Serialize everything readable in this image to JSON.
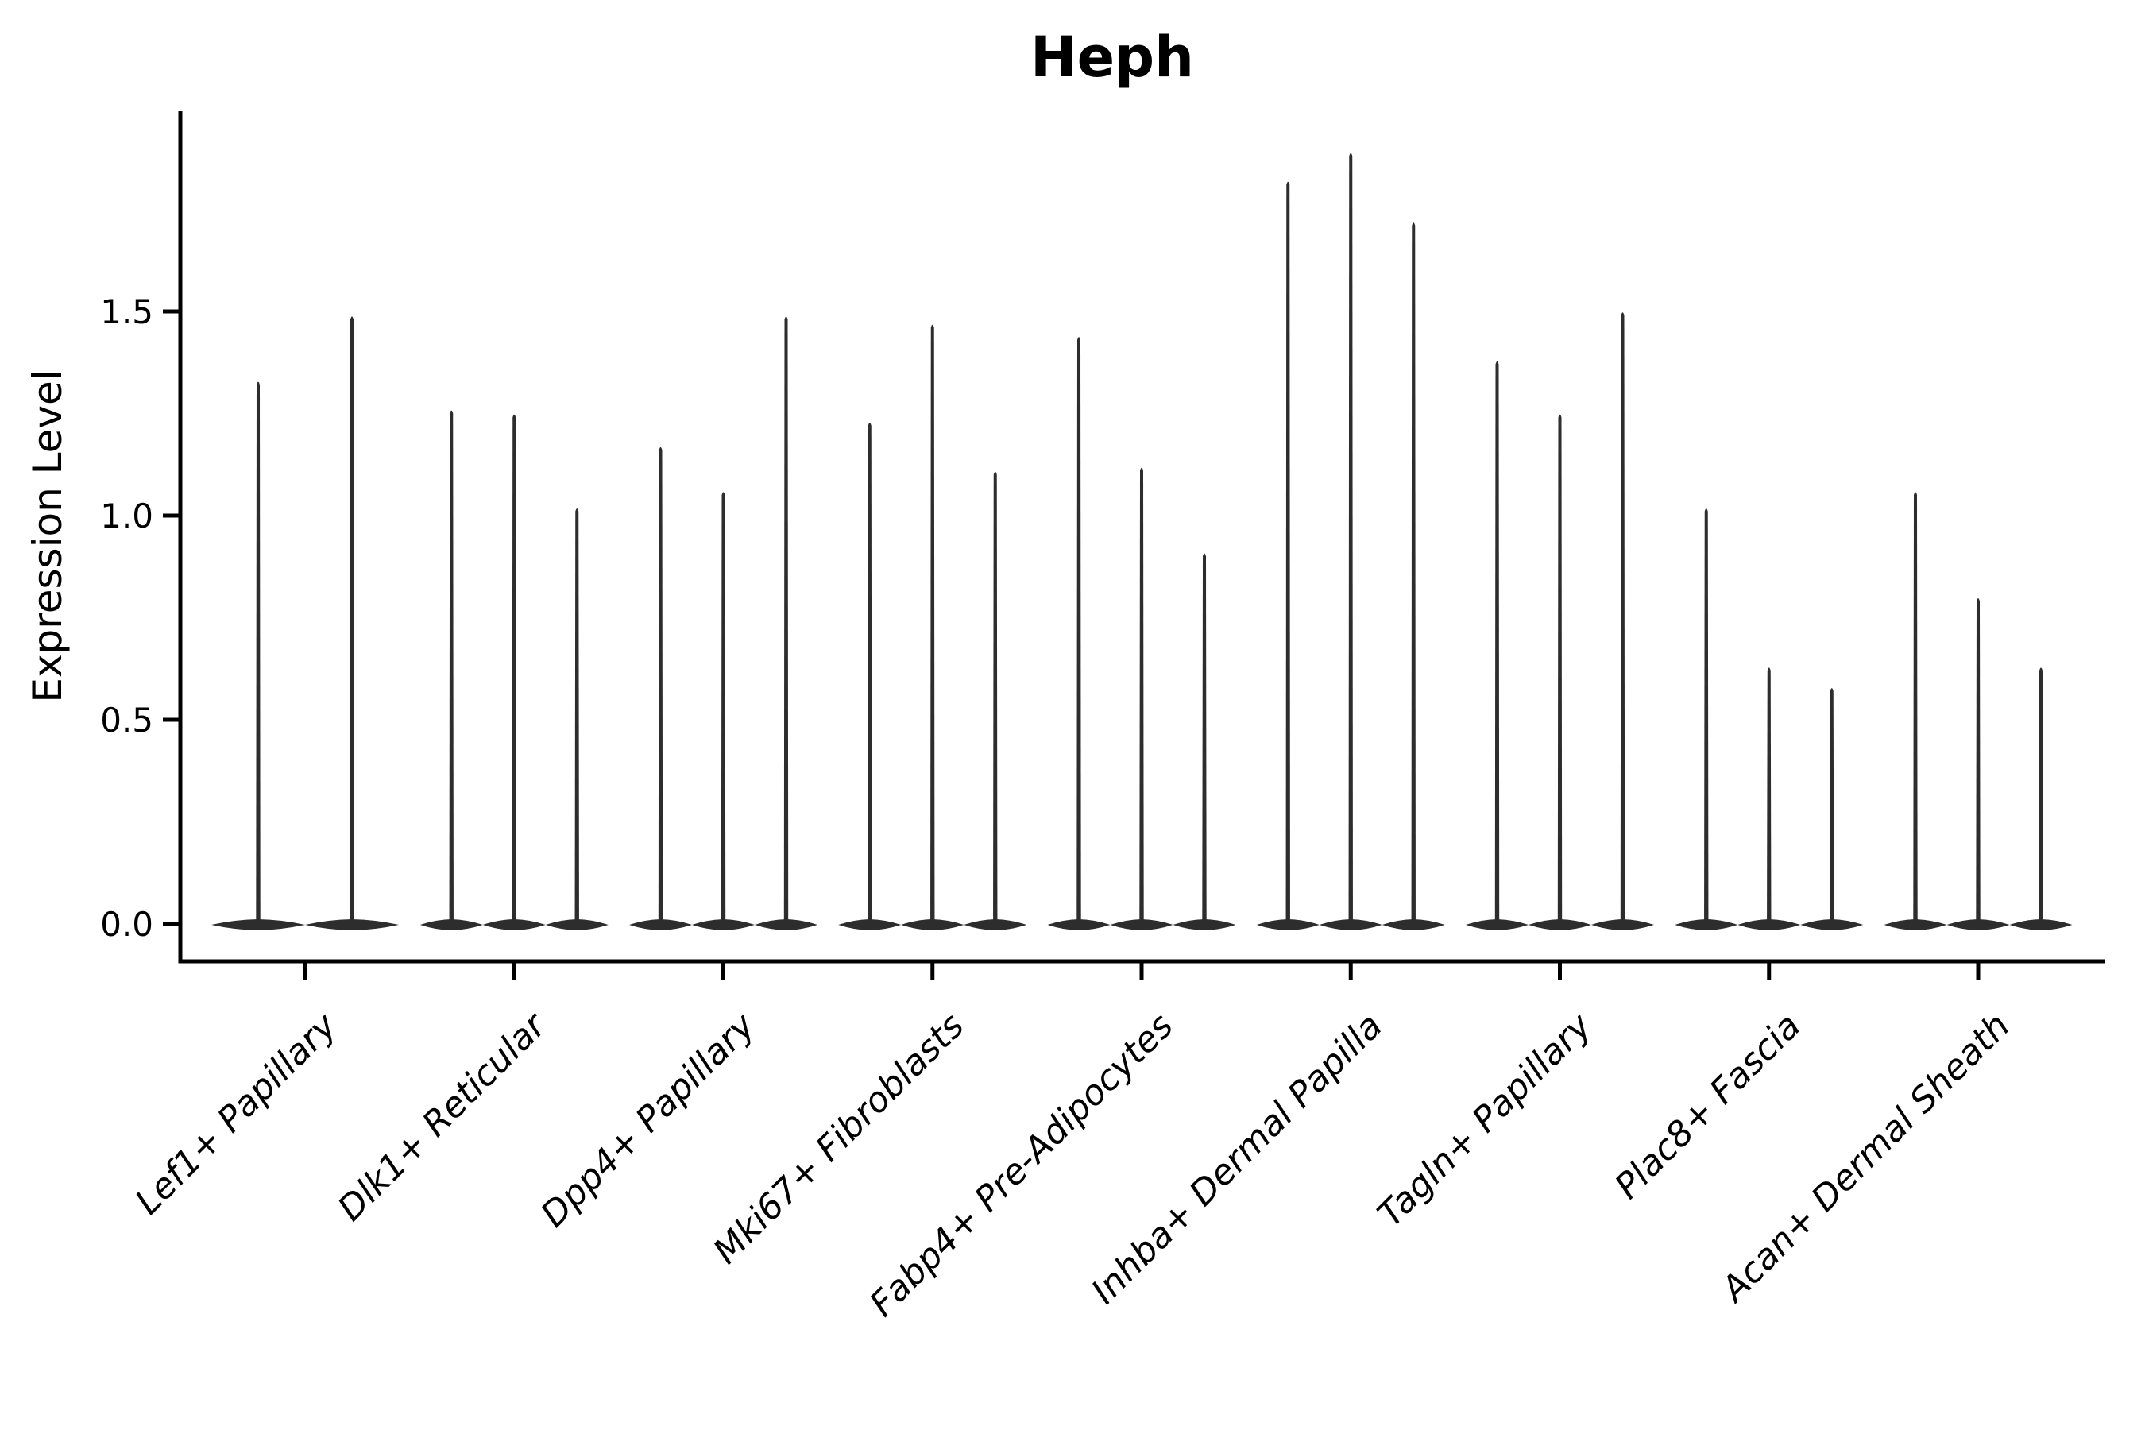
{
  "title": "Heph",
  "y_axis": {
    "label": "Expression Level",
    "ticks": [
      0.0,
      0.5,
      1.0,
      1.5
    ],
    "ylim": [
      -0.09,
      1.99
    ]
  },
  "chart_data": {
    "type": "violin",
    "title": "Heph",
    "xlabel": "",
    "ylabel": "Expression Level",
    "grid": false,
    "legend": "none",
    "categories": [
      "Lef1+ Papillary",
      "Dlk1+ Reticular",
      "Dpp4+ Papillary",
      "Mki67+ Fibroblasts",
      "Fabp4+ Pre-Adipocytes",
      "Inhba+ Dermal Papilla",
      "Tagln+ Papillary",
      "Plac8+ Fascia",
      "Acan+ Dermal Sheath"
    ],
    "violin_max_values": [
      [
        1.33,
        1.49
      ],
      [
        1.26,
        1.25,
        1.02
      ],
      [
        1.17,
        1.06,
        1.49
      ],
      [
        1.23,
        1.47,
        1.11
      ],
      [
        1.44,
        1.12,
        0.91
      ],
      [
        1.82,
        1.89,
        1.72
      ],
      [
        1.38,
        1.25,
        1.5
      ],
      [
        1.02,
        0.63,
        0.58
      ],
      [
        1.06,
        0.8,
        0.63
      ]
    ],
    "violin_min_value": 0.0,
    "yticks": [
      0.0,
      0.5,
      1.0,
      1.5
    ],
    "ylim": [
      -0.09,
      1.99
    ],
    "description": "Each category shows needle-thin violins: nearly all density at 0 (wide flat base) with a thin spike up to the max expression value."
  },
  "colors": {
    "violin": "#2d2d2d",
    "axis": "#000000",
    "text": "#000000",
    "background": "#ffffff"
  }
}
